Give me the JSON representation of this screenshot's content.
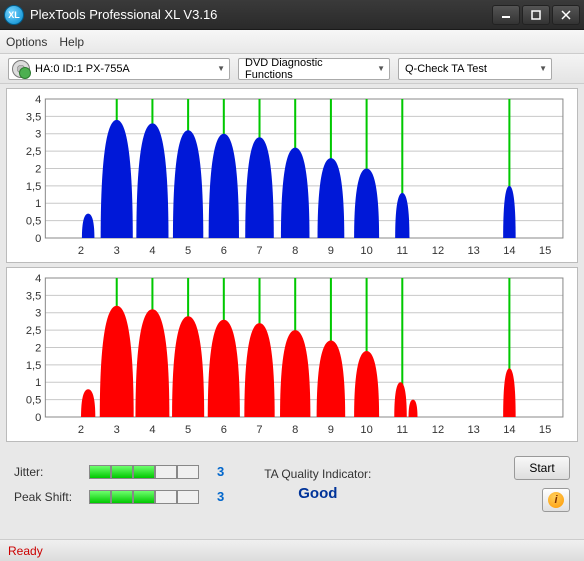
{
  "window": {
    "title": "PlexTools Professional XL V3.16",
    "icon_text": "XL"
  },
  "menu": {
    "options": "Options",
    "help": "Help"
  },
  "toolbar": {
    "drive": "HA:0 ID:1   PX-755A",
    "func": "DVD Diagnostic Functions",
    "test": "Q-Check TA Test"
  },
  "chart_top": {
    "type": "filled-peaks",
    "color": "#0018d8",
    "background": "#ffffff",
    "grid_color": "#c8c8c8",
    "marker_line_color": "#00c800",
    "ylim": [
      0,
      4
    ],
    "ytick_step": 0.5,
    "ylabels": [
      "0",
      "0,5",
      "1",
      "1,5",
      "2",
      "2,5",
      "3",
      "3,5",
      "4"
    ],
    "xlim": [
      1,
      15.5
    ],
    "xlabels": [
      "2",
      "3",
      "4",
      "5",
      "6",
      "7",
      "8",
      "9",
      "10",
      "11",
      "12",
      "13",
      "14",
      "15"
    ],
    "markers": [
      3,
      4,
      5,
      6,
      7,
      8,
      9,
      10,
      11,
      14
    ],
    "peaks": [
      {
        "x": 2.2,
        "w": 0.35,
        "h": 0.7
      },
      {
        "x": 3.0,
        "w": 0.9,
        "h": 3.4
      },
      {
        "x": 4.0,
        "w": 0.9,
        "h": 3.3
      },
      {
        "x": 5.0,
        "w": 0.85,
        "h": 3.1
      },
      {
        "x": 6.0,
        "w": 0.85,
        "h": 3.0
      },
      {
        "x": 7.0,
        "w": 0.8,
        "h": 2.9
      },
      {
        "x": 8.0,
        "w": 0.8,
        "h": 2.6
      },
      {
        "x": 9.0,
        "w": 0.75,
        "h": 2.3
      },
      {
        "x": 10.0,
        "w": 0.7,
        "h": 2.0
      },
      {
        "x": 11.0,
        "w": 0.4,
        "h": 1.3
      },
      {
        "x": 14.0,
        "w": 0.35,
        "h": 1.5
      }
    ]
  },
  "chart_bottom": {
    "type": "filled-peaks",
    "color": "#ff0000",
    "background": "#ffffff",
    "grid_color": "#c8c8c8",
    "marker_line_color": "#00c800",
    "ylim": [
      0,
      4
    ],
    "ytick_step": 0.5,
    "ylabels": [
      "0",
      "0,5",
      "1",
      "1,5",
      "2",
      "2,5",
      "3",
      "3,5",
      "4"
    ],
    "xlim": [
      1,
      15.5
    ],
    "xlabels": [
      "2",
      "3",
      "4",
      "5",
      "6",
      "7",
      "8",
      "9",
      "10",
      "11",
      "12",
      "13",
      "14",
      "15"
    ],
    "markers": [
      3,
      4,
      5,
      6,
      7,
      8,
      9,
      10,
      11,
      14
    ],
    "peaks": [
      {
        "x": 2.2,
        "w": 0.4,
        "h": 0.8
      },
      {
        "x": 3.0,
        "w": 0.95,
        "h": 3.2
      },
      {
        "x": 4.0,
        "w": 0.95,
        "h": 3.1
      },
      {
        "x": 5.0,
        "w": 0.9,
        "h": 2.9
      },
      {
        "x": 6.0,
        "w": 0.9,
        "h": 2.8
      },
      {
        "x": 7.0,
        "w": 0.85,
        "h": 2.7
      },
      {
        "x": 8.0,
        "w": 0.85,
        "h": 2.5
      },
      {
        "x": 9.0,
        "w": 0.8,
        "h": 2.2
      },
      {
        "x": 10.0,
        "w": 0.7,
        "h": 1.9
      },
      {
        "x": 10.95,
        "w": 0.35,
        "h": 1.0
      },
      {
        "x": 11.3,
        "w": 0.25,
        "h": 0.5
      },
      {
        "x": 14.0,
        "w": 0.35,
        "h": 1.4
      }
    ]
  },
  "stats": {
    "jitter_label": "Jitter:",
    "jitter_value": "3",
    "jitter_filled": 3,
    "jitter_total": 5,
    "peakshift_label": "Peak Shift:",
    "peakshift_value": "3",
    "peakshift_filled": 3,
    "peakshift_total": 5,
    "ta_label": "TA Quality Indicator:",
    "ta_value": "Good",
    "ta_color": "#003399",
    "bar_fill_color": "#00c800",
    "bar_empty_color": "#f0f0f0"
  },
  "buttons": {
    "start": "Start"
  },
  "status": {
    "text": "Ready",
    "color": "#c00000"
  }
}
